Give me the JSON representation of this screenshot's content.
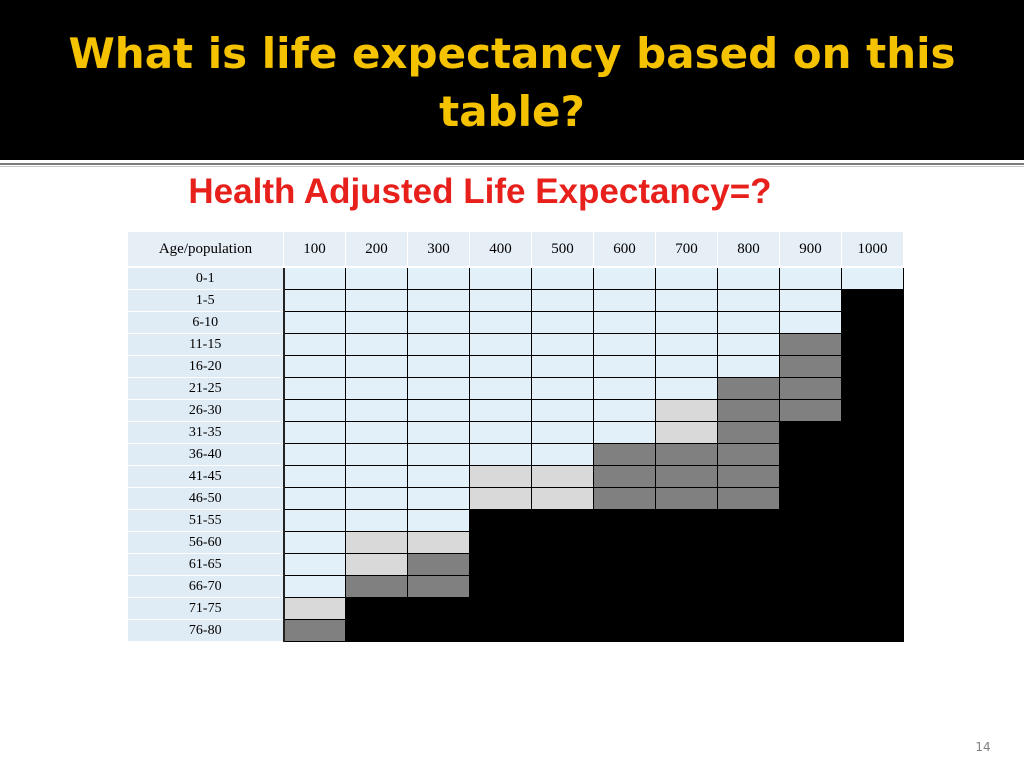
{
  "slide": {
    "title": "What is life expectancy based on this table?",
    "subtitle": "Health Adjusted Life Expectancy=?",
    "page_number": "14"
  },
  "colors": {
    "title_bg": "#000000",
    "title_text": "#f5c200",
    "subtitle_text": "#e8201c",
    "L": "#e2f0f9",
    "S": "#d9d9d9",
    "G": "#808080",
    "B": "#000000"
  },
  "legend_codes": {
    "L": "healthy (light blue)",
    "S": "light gray",
    "G": "dark gray",
    "B": "black"
  },
  "table": {
    "corner_label": "Age/population",
    "populations": [
      "100",
      "200",
      "300",
      "400",
      "500",
      "600",
      "700",
      "800",
      "900",
      "1000"
    ],
    "rows": [
      {
        "age": "0-1",
        "cells": [
          "L",
          "L",
          "L",
          "L",
          "L",
          "L",
          "L",
          "L",
          "L",
          "L"
        ]
      },
      {
        "age": "1-5",
        "cells": [
          "L",
          "L",
          "L",
          "L",
          "L",
          "L",
          "L",
          "L",
          "L",
          "B"
        ]
      },
      {
        "age": "6-10",
        "cells": [
          "L",
          "L",
          "L",
          "L",
          "L",
          "L",
          "L",
          "L",
          "L",
          "B"
        ]
      },
      {
        "age": "11-15",
        "cells": [
          "L",
          "L",
          "L",
          "L",
          "L",
          "L",
          "L",
          "L",
          "G",
          "B"
        ]
      },
      {
        "age": "16-20",
        "cells": [
          "L",
          "L",
          "L",
          "L",
          "L",
          "L",
          "L",
          "L",
          "G",
          "B"
        ]
      },
      {
        "age": "21-25",
        "cells": [
          "L",
          "L",
          "L",
          "L",
          "L",
          "L",
          "L",
          "G",
          "G",
          "B"
        ]
      },
      {
        "age": "26-30",
        "cells": [
          "L",
          "L",
          "L",
          "L",
          "L",
          "L",
          "S",
          "G",
          "G",
          "B"
        ]
      },
      {
        "age": "31-35",
        "cells": [
          "L",
          "L",
          "L",
          "L",
          "L",
          "L",
          "S",
          "G",
          "B",
          "B"
        ]
      },
      {
        "age": "36-40",
        "cells": [
          "L",
          "L",
          "L",
          "L",
          "L",
          "G",
          "G",
          "G",
          "B",
          "B"
        ]
      },
      {
        "age": "41-45",
        "cells": [
          "L",
          "L",
          "L",
          "S",
          "S",
          "G",
          "G",
          "G",
          "B",
          "B"
        ]
      },
      {
        "age": "46-50",
        "cells": [
          "L",
          "L",
          "L",
          "S",
          "S",
          "G",
          "G",
          "G",
          "B",
          "B"
        ]
      },
      {
        "age": "51-55",
        "cells": [
          "L",
          "L",
          "L",
          "B",
          "B",
          "B",
          "B",
          "B",
          "B",
          "B"
        ]
      },
      {
        "age": "56-60",
        "cells": [
          "L",
          "S",
          "S",
          "B",
          "B",
          "B",
          "B",
          "B",
          "B",
          "B"
        ]
      },
      {
        "age": "61-65",
        "cells": [
          "L",
          "S",
          "G",
          "B",
          "B",
          "B",
          "B",
          "B",
          "B",
          "B"
        ]
      },
      {
        "age": "66-70",
        "cells": [
          "L",
          "G",
          "G",
          "B",
          "B",
          "B",
          "B",
          "B",
          "B",
          "B"
        ]
      },
      {
        "age": "71-75",
        "cells": [
          "S",
          "B",
          "B",
          "B",
          "B",
          "B",
          "B",
          "B",
          "B",
          "B"
        ]
      },
      {
        "age": "76-80",
        "cells": [
          "G",
          "B",
          "B",
          "B",
          "B",
          "B",
          "B",
          "B",
          "B",
          "B"
        ]
      }
    ]
  }
}
